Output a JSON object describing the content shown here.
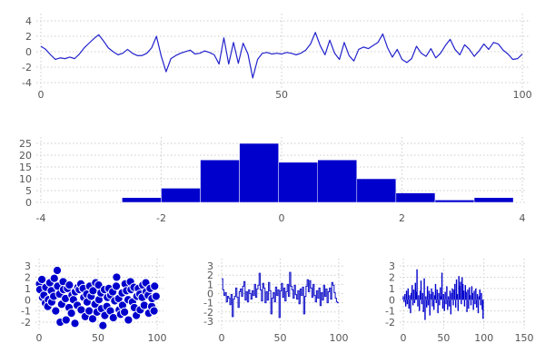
{
  "figure": {
    "background": "#ffffff",
    "series_fill_color": "#0000cd",
    "series_line_color": "#2222cc",
    "grid_color": "#cccccc",
    "tick_label_color": "#555555",
    "marker_edge_color": "#ffffff"
  },
  "chart_data": [
    {
      "id": "line",
      "type": "line",
      "title": "",
      "xlabel": "",
      "ylabel": "",
      "xticks": [
        0,
        50,
        100
      ],
      "yticks": [
        -4,
        -2,
        0,
        2,
        4
      ],
      "xlim": [
        -0.95,
        101.3
      ],
      "ylim": [
        -4.71,
        4.94
      ],
      "grid": true,
      "x_mode": "index 0..100",
      "values": [
        0.7,
        0.3,
        -0.4,
        -1.0,
        -0.8,
        -0.9,
        -0.7,
        -0.9,
        -0.3,
        0.5,
        1.1,
        1.7,
        2.2,
        1.4,
        0.5,
        0.0,
        -0.4,
        -0.2,
        0.3,
        -0.2,
        -0.5,
        -0.5,
        -0.2,
        0.5,
        2.0,
        -0.6,
        -2.6,
        -0.9,
        -0.5,
        -0.2,
        0.0,
        0.2,
        -0.3,
        -0.2,
        0.1,
        -0.1,
        -0.4,
        -1.6,
        1.8,
        -1.6,
        1.2,
        -1.5,
        1.1,
        -0.3,
        -3.4,
        -1.0,
        -0.2,
        -0.1,
        -0.3,
        -0.2,
        -0.3,
        -0.1,
        -0.2,
        -0.4,
        -0.2,
        0.2,
        1.0,
        2.5,
        0.8,
        -0.4,
        1.5,
        -0.2,
        -1.0,
        1.2,
        -0.5,
        -1.2,
        0.3,
        0.6,
        0.4,
        0.8,
        1.2,
        2.3,
        0.5,
        -0.7,
        0.3,
        -1.0,
        -1.4,
        -0.9,
        0.7,
        -0.2,
        -0.6,
        0.4,
        -0.8,
        -0.2,
        0.8,
        1.6,
        0.3,
        -0.4,
        0.9,
        0.3,
        -0.6,
        0.1,
        1.0,
        0.3,
        1.2,
        1.0,
        0.2,
        -0.3,
        -1.0,
        -0.9,
        -0.3
      ]
    },
    {
      "id": "hist",
      "type": "histogram",
      "title": "",
      "xlabel": "",
      "ylabel": "",
      "xticks": [
        -4,
        -2,
        0,
        2,
        4
      ],
      "yticks": [
        0,
        5,
        10,
        15,
        20,
        25
      ],
      "xlim": [
        -4.075,
        4.075
      ],
      "ylim": [
        0,
        27.7
      ],
      "grid": true,
      "bin_start": -2.65,
      "bin_width": 0.65,
      "counts": [
        2,
        6,
        18,
        25,
        17,
        18,
        10,
        4,
        1,
        2
      ]
    },
    {
      "id": "scatter",
      "type": "scatter",
      "title": "",
      "xlabel": "",
      "ylabel": "",
      "xticks": [
        0,
        50,
        100
      ],
      "yticks": [
        -2,
        -1,
        0,
        1,
        2,
        3
      ],
      "xlim": [
        -3.08,
        105.4
      ],
      "ylim": [
        -2.56,
        3.65
      ],
      "grid": true,
      "x_mode": "index plus jitter cycle",
      "x_jitter_cycle": [
        0.4,
        -0.3,
        0.9,
        -0.6,
        0.1
      ],
      "y": [
        1.4,
        0.9,
        0.2,
        1.8,
        0.4,
        -0.3,
        1.1,
        0.0,
        -0.6,
        1.5,
        0.8,
        -0.2,
        1.9,
        0.3,
        -1.0,
        2.6,
        1.2,
        -2.0,
        0.5,
        -0.4,
        1.6,
        0.9,
        -1.8,
        0.1,
        1.0,
        -0.7,
        1.3,
        0.4,
        -1.2,
        0.0,
        -2.1,
        0.7,
        1.1,
        -0.5,
        0.9,
        1.4,
        -0.9,
        0.2,
        1.0,
        -1.5,
        0.5,
        -0.2,
        1.2,
        -1.0,
        0.3,
        -1.7,
        0.8,
        1.5,
        -0.4,
        -1.1,
        1.3,
        0.0,
        -0.8,
        0.6,
        -2.3,
        0.9,
        -1.4,
        0.2,
        -0.6,
        1.0,
        -1.0,
        0.4,
        -1.6,
        0.7,
        -0.1,
        1.2,
        2.0,
        -0.9,
        0.1,
        -1.3,
        0.6,
        -0.5,
        1.4,
        -1.1,
        0.8,
        0.0,
        -1.8,
        0.9,
        1.6,
        -0.2,
        1.1,
        -0.7,
        0.3,
        -1.4,
        1.0,
        0.5,
        -0.9,
        1.3,
        0.2,
        -0.5,
        1.5,
        0.7,
        -1.2,
        0.4,
        1.0,
        -0.6,
        0.1,
        1.2,
        -1.0,
        0.3
      ]
    },
    {
      "id": "step",
      "type": "step",
      "title": "",
      "xlabel": "",
      "ylabel": "",
      "xticks": [
        0,
        50,
        100
      ],
      "yticks": [
        -3,
        -2,
        -1,
        0,
        1,
        2,
        3
      ],
      "xlim": [
        -3.1,
        103.9
      ],
      "ylim": [
        -3.8,
        3.8
      ],
      "grid": true,
      "x_mode": "index 0..99",
      "values": [
        1.6,
        0.4,
        -0.2,
        0.1,
        -0.9,
        -0.3,
        -0.5,
        -1.2,
        -0.1,
        -2.5,
        -0.6,
        -0.3,
        0.6,
        -0.4,
        -1.5,
        0.2,
        0.5,
        -0.3,
        0.8,
        1.3,
        -0.7,
        0.2,
        -0.9,
        0.4,
        0.0,
        -0.6,
        0.3,
        -0.2,
        1.0,
        -0.4,
        0.5,
        0.9,
        2.2,
        0.4,
        -0.8,
        1.1,
        0.6,
        -1.0,
        0.2,
        -0.7,
        1.2,
        0.3,
        -2.2,
        -0.5,
        0.1,
        -0.9,
        0.7,
        -0.2,
        0.4,
        -2.6,
        0.3,
        1.1,
        -0.4,
        0.6,
        -0.8,
        0.2,
        1.0,
        -0.3,
        2.3,
        0.8,
        0.4,
        -0.5,
        0.9,
        -0.1,
        -0.6,
        0.3,
        -1.1,
        0.5,
        -0.2,
        0.7,
        -2.2,
        -0.3,
        0.8,
        1.5,
        0.2,
        1.4,
        0.6,
        -0.4,
        1.0,
        -0.2,
        -0.9,
        0.3,
        -0.5,
        0.6,
        -1.3,
        0.1,
        -0.7,
        0.9,
        -0.3,
        0.5,
        -1.0,
        0.2,
        0.6,
        -0.6,
        1.2,
        0.9,
        0.1,
        -0.5,
        -0.9,
        -1.0
      ]
    },
    {
      "id": "bars",
      "type": "bar",
      "title": "",
      "xlabel": "",
      "ylabel": "",
      "xticks": [
        0,
        50,
        100,
        150
      ],
      "yticks": [
        -2,
        -1,
        0,
        1,
        2,
        3
      ],
      "xlim": [
        -4.51,
        153.3
      ],
      "ylim": [
        -2.56,
        3.65
      ],
      "grid": true,
      "x_mode": "index 0..99",
      "values": [
        0.3,
        -0.2,
        0.5,
        -0.6,
        0.8,
        -0.4,
        1.0,
        -0.8,
        0.4,
        -1.2,
        0.6,
        1.3,
        -0.5,
        0.9,
        -0.3,
        1.5,
        0.7,
        2.7,
        -0.6,
        0.4,
        -1.0,
        0.8,
        1.7,
        -0.4,
        0.6,
        -1.1,
        1.9,
        -1.8,
        0.3,
        -0.7,
        1.2,
        -0.5,
        0.8,
        -1.4,
        0.5,
        1.0,
        -0.6,
        0.7,
        -0.9,
        0.4,
        1.4,
        -0.3,
        0.9,
        -1.2,
        0.6,
        -0.5,
        1.1,
        0.3,
        2.4,
        -0.8,
        0.5,
        -1.0,
        0.7,
        -0.4,
        1.2,
        -0.9,
        0.3,
        -0.6,
        0.8,
        -1.3,
        0.6,
        1.0,
        -0.5,
        0.9,
        1.4,
        -0.7,
        1.8,
        0.5,
        -1.0,
        2.1,
        1.2,
        1.6,
        -0.4,
        2.0,
        1.4,
        0.8,
        -0.6,
        1.3,
        0.7,
        -1.1,
        0.9,
        -0.8,
        1.1,
        0.4,
        -0.5,
        1.2,
        0.6,
        -0.9,
        0.8,
        -0.4,
        1.0,
        -0.7,
        0.5,
        -1.2,
        0.3,
        0.9,
        -0.5,
        0.6,
        -0.9,
        -1.7
      ]
    }
  ]
}
